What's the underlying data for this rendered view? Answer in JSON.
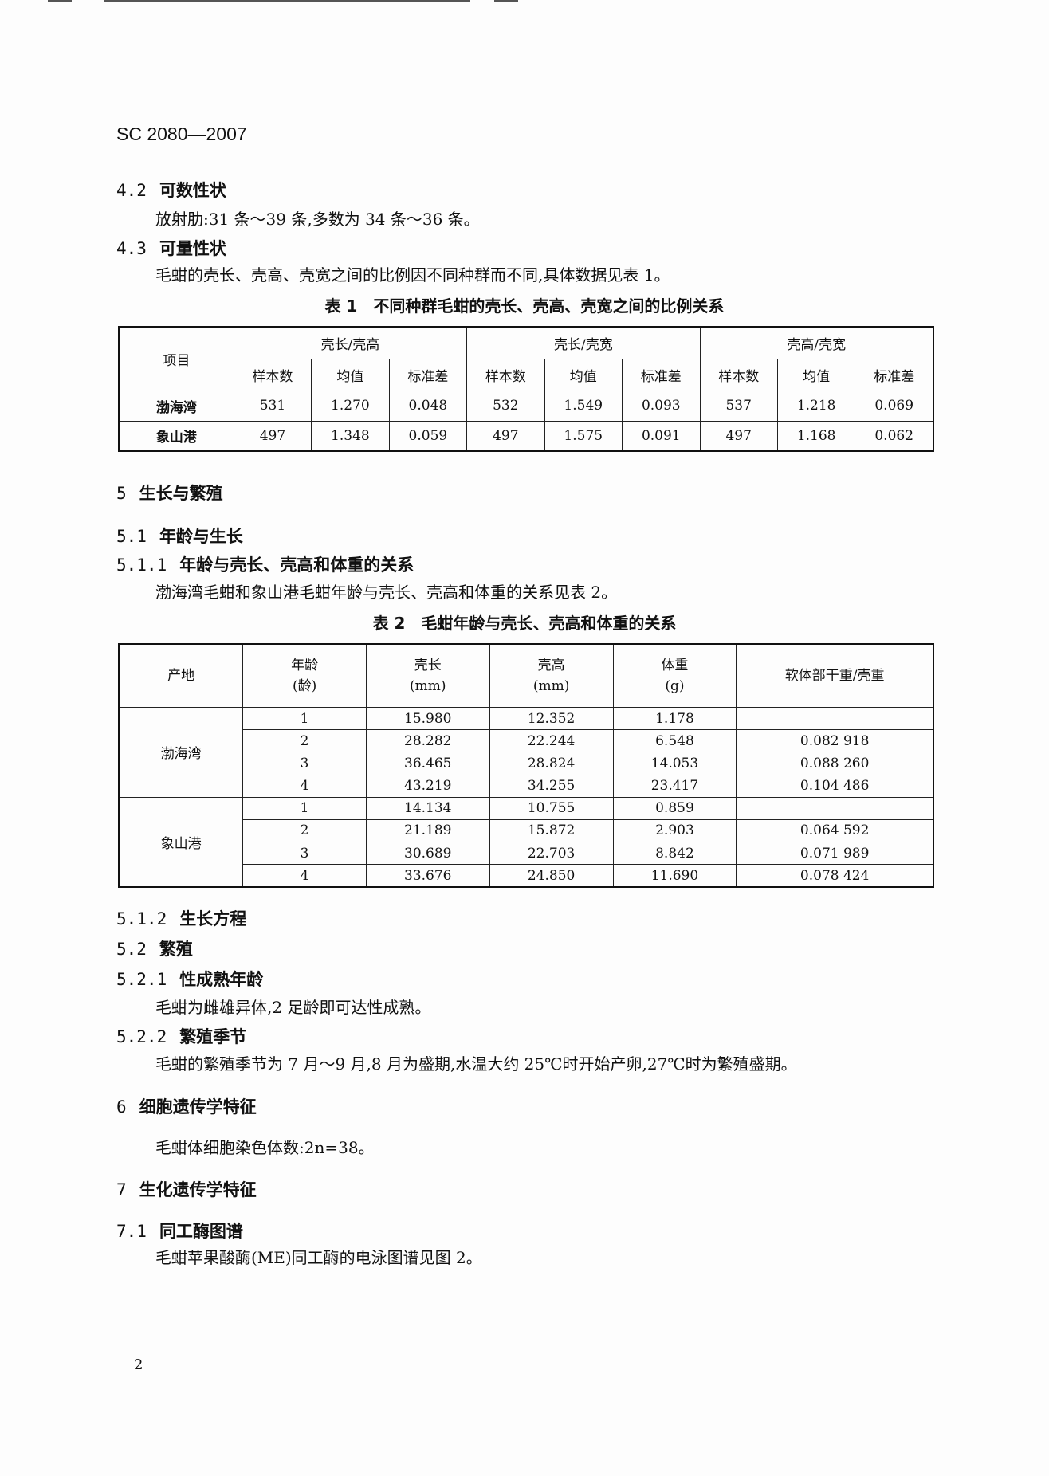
{
  "header": "SC 2080—2007",
  "s42": {
    "num": "4.2",
    "title": "可数性状",
    "text": "放射肋:31 条～39 条,多数为 34 条～36 条。"
  },
  "s43": {
    "num": "4.3",
    "title": "可量性状",
    "text": "毛蚶的壳长、壳高、壳宽之间的比例因不同种群而不同,具体数据见表 1。"
  },
  "table1": {
    "caption": "表 1　不同种群毛蚶的壳长、壳高、壳宽之间的比例关系",
    "item_header": "项目",
    "groups": [
      "壳长/壳高",
      "壳长/壳宽",
      "壳高/壳宽"
    ],
    "subheaders": [
      "样本数",
      "均值",
      "标准差"
    ],
    "rows": [
      {
        "name": "渤海湾",
        "values": [
          "531",
          "1.270",
          "0.048",
          "532",
          "1.549",
          "0.093",
          "537",
          "1.218",
          "0.069"
        ]
      },
      {
        "name": "象山港",
        "values": [
          "497",
          "1.348",
          "0.059",
          "497",
          "1.575",
          "0.091",
          "497",
          "1.168",
          "0.062"
        ]
      }
    ]
  },
  "s5": {
    "num": "5",
    "title": "生长与繁殖"
  },
  "s51": {
    "num": "5.1",
    "title": "年龄与生长"
  },
  "s511": {
    "num": "5.1.1",
    "title": "年龄与壳长、壳高和体重的关系",
    "text": "渤海湾毛蚶和象山港毛蚶年龄与壳长、壳高和体重的关系见表 2。"
  },
  "table2": {
    "caption": "表 2　毛蚶年龄与壳长、壳高和体重的关系",
    "headers": [
      [
        "产地",
        ""
      ],
      [
        "年龄",
        "(龄)"
      ],
      [
        "壳长",
        "(mm)"
      ],
      [
        "壳高",
        "(mm)"
      ],
      [
        "体重",
        "(g)"
      ],
      [
        "软体部干重/壳重",
        ""
      ]
    ],
    "groups": [
      {
        "name": "渤海湾",
        "rows": [
          [
            "1",
            "15.980",
            "12.352",
            "1.178",
            ""
          ],
          [
            "2",
            "28.282",
            "22.244",
            "6.548",
            "0.082 918"
          ],
          [
            "3",
            "36.465",
            "28.824",
            "14.053",
            "0.088 260"
          ],
          [
            "4",
            "43.219",
            "34.255",
            "23.417",
            "0.104 486"
          ]
        ]
      },
      {
        "name": "象山港",
        "rows": [
          [
            "1",
            "14.134",
            "10.755",
            "0.859",
            ""
          ],
          [
            "2",
            "21.189",
            "15.872",
            "2.903",
            "0.064 592"
          ],
          [
            "3",
            "30.689",
            "22.703",
            "8.842",
            "0.071 989"
          ],
          [
            "4",
            "33.676",
            "24.850",
            "11.690",
            "0.078 424"
          ]
        ]
      }
    ]
  },
  "s512": {
    "num": "5.1.2",
    "title": "生长方程"
  },
  "s52": {
    "num": "5.2",
    "title": "繁殖"
  },
  "s521": {
    "num": "5.2.1",
    "title": "性成熟年龄",
    "text": "毛蚶为雌雄异体,2 足龄即可达性成熟。"
  },
  "s522": {
    "num": "5.2.2",
    "title": "繁殖季节",
    "text": "毛蚶的繁殖季节为 7 月～9 月,8 月为盛期,水温大约 25℃时开始产卵,27℃时为繁殖盛期。"
  },
  "s6": {
    "num": "6",
    "title": "细胞遗传学特征",
    "text": "毛蚶体细胞染色体数:2n=38。"
  },
  "s7": {
    "num": "7",
    "title": "生化遗传学特征"
  },
  "s71": {
    "num": "7.1",
    "title": "同工酶图谱",
    "text": "毛蚶苹果酸酶(ME)同工酶的电泳图谱见图 2。"
  },
  "page_number": "2"
}
